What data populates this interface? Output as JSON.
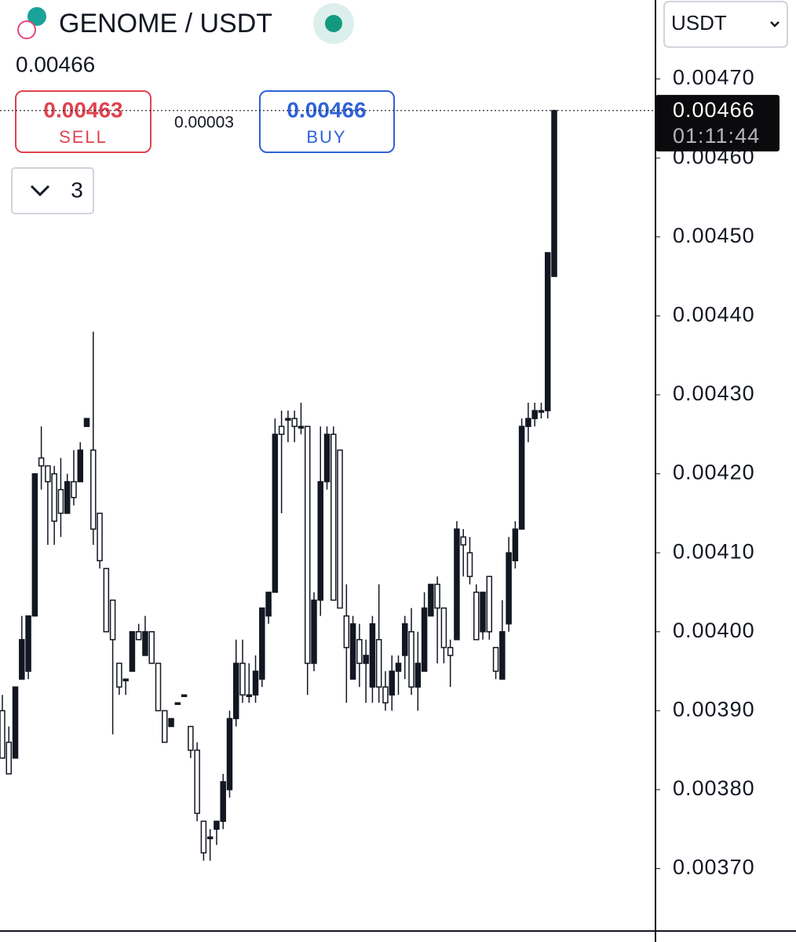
{
  "header": {
    "title": "GENOME / USDT",
    "price": "0.00466",
    "sell_price": "0.00463",
    "sell_label": "SELL",
    "spread": "0.00003",
    "buy_price": "0.00466",
    "buy_label": "BUY",
    "collapse_count": "3",
    "currency": "USDT"
  },
  "chart_data": {
    "type": "candlestick",
    "up_color": "#131722",
    "down_color": "#ffffff",
    "last_price": 0.00466,
    "countdown": "01:11:44",
    "ylim": [
      0.003622,
      0.0048
    ],
    "yticks": [
      {
        "value": 0.0037,
        "label": "0.00370"
      },
      {
        "value": 0.0038,
        "label": "0.00380"
      },
      {
        "value": 0.0039,
        "label": "0.00390"
      },
      {
        "value": 0.004,
        "label": "0.00400"
      },
      {
        "value": 0.0041,
        "label": "0.00410"
      },
      {
        "value": 0.0042,
        "label": "0.00420"
      },
      {
        "value": 0.0043,
        "label": "0.00430"
      },
      {
        "value": 0.0044,
        "label": "0.00440"
      },
      {
        "value": 0.0045,
        "label": "0.00450"
      },
      {
        "value": 0.0046,
        "label": "0.00460"
      },
      {
        "value": 0.0047,
        "label": "0.00470"
      }
    ],
    "open": [
      0.0039,
      0.00386,
      0.00384,
      0.00394,
      0.00395,
      0.00402,
      0.00422,
      0.00421,
      0.0042,
      0.00418,
      0.00415,
      0.00419,
      0.00419,
      0.00426,
      0.00423,
      0.00415,
      0.00408,
      0.00404,
      0.00396,
      0.00394,
      0.00395,
      0.004,
      0.00397,
      0.004,
      0.00396,
      0.0039,
      0.00388,
      0.00391,
      0.00392,
      0.00388,
      0.00385,
      0.00376,
      0.00374,
      0.00375,
      0.00376,
      0.0038,
      0.00389,
      0.00396,
      0.00392,
      0.00392,
      0.00394,
      0.00402,
      0.00405,
      0.00426,
      0.00427,
      0.00427,
      0.00426,
      0.00426,
      0.00396,
      0.00404,
      0.00419,
      0.00425,
      0.00423,
      0.00402,
      0.00394,
      0.00399,
      0.00396,
      0.00393,
      0.00399,
      0.00393,
      0.00392,
      0.00395,
      0.00397,
      0.004,
      0.00393,
      0.00395,
      0.00402,
      0.00406,
      0.00403,
      0.00398,
      0.00399,
      0.00412,
      0.0041,
      0.00405,
      0.004,
      0.00407,
      0.00398,
      0.00394,
      0.00401,
      0.00409,
      0.00413,
      0.00426,
      0.00427,
      0.00428,
      0.00428,
      0.00445
    ],
    "high": [
      0.00392,
      0.00388,
      0.00393,
      0.00402,
      0.00402,
      0.0042,
      0.00426,
      0.00421,
      0.00421,
      0.00422,
      0.0042,
      0.00423,
      0.00424,
      0.00427,
      0.00438,
      0.00415,
      0.00408,
      0.00404,
      0.00396,
      0.00394,
      0.004,
      0.00401,
      0.00402,
      0.004,
      0.00396,
      0.0039,
      0.00389,
      0.00391,
      0.00392,
      0.00388,
      0.00386,
      0.00376,
      0.00375,
      0.00376,
      0.00382,
      0.0039,
      0.00399,
      0.00399,
      0.00396,
      0.00397,
      0.00403,
      0.00405,
      0.00427,
      0.00428,
      0.00428,
      0.00428,
      0.00429,
      0.00426,
      0.00405,
      0.00426,
      0.00426,
      0.00426,
      0.00423,
      0.00406,
      0.00402,
      0.00401,
      0.00399,
      0.00402,
      0.00406,
      0.00395,
      0.00397,
      0.00397,
      0.00402,
      0.00403,
      0.004,
      0.00405,
      0.00406,
      0.00407,
      0.00403,
      0.00399,
      0.00414,
      0.00413,
      0.00412,
      0.00406,
      0.00405,
      0.00407,
      0.00398,
      0.00404,
      0.00412,
      0.00414,
      0.00427,
      0.00429,
      0.00429,
      0.00429,
      0.00448,
      0.00466
    ],
    "low": [
      0.00384,
      0.00382,
      0.00384,
      0.00394,
      0.00394,
      0.00402,
      0.00418,
      0.00411,
      0.00411,
      0.00412,
      0.00415,
      0.00416,
      0.00419,
      0.00426,
      0.00411,
      0.00408,
      0.004,
      0.00387,
      0.00392,
      0.00392,
      0.00395,
      0.00399,
      0.00397,
      0.00396,
      0.0039,
      0.00386,
      0.00388,
      0.00391,
      0.00392,
      0.00384,
      0.00376,
      0.00371,
      0.00371,
      0.00373,
      0.00375,
      0.00379,
      0.00388,
      0.00391,
      0.00391,
      0.00391,
      0.00393,
      0.00401,
      0.00405,
      0.00415,
      0.00424,
      0.00424,
      0.00425,
      0.00392,
      0.00395,
      0.00402,
      0.00418,
      0.00404,
      0.00403,
      0.00391,
      0.00394,
      0.00393,
      0.00391,
      0.00391,
      0.00391,
      0.0039,
      0.0039,
      0.00392,
      0.00394,
      0.00392,
      0.0039,
      0.00395,
      0.00402,
      0.00396,
      0.00396,
      0.00393,
      0.00399,
      0.00407,
      0.00406,
      0.00399,
      0.00399,
      0.00399,
      0.00394,
      0.00394,
      0.004,
      0.00408,
      0.00413,
      0.00424,
      0.00426,
      0.00427,
      0.00427,
      0.00445
    ],
    "close": [
      0.00384,
      0.00382,
      0.00393,
      0.00399,
      0.00402,
      0.0042,
      0.00421,
      0.00419,
      0.00414,
      0.00415,
      0.00419,
      0.00417,
      0.00423,
      0.00427,
      0.00413,
      0.00409,
      0.004,
      0.00399,
      0.00393,
      0.00394,
      0.004,
      0.00399,
      0.004,
      0.00396,
      0.0039,
      0.00386,
      0.00389,
      0.00391,
      0.00392,
      0.00385,
      0.00377,
      0.00372,
      0.00374,
      0.00376,
      0.00381,
      0.00389,
      0.00396,
      0.00392,
      0.00392,
      0.00395,
      0.00403,
      0.00405,
      0.00425,
      0.00425,
      0.00427,
      0.00426,
      0.00426,
      0.00396,
      0.00404,
      0.00419,
      0.00425,
      0.00404,
      0.00403,
      0.00398,
      0.00401,
      0.00396,
      0.00397,
      0.00401,
      0.00393,
      0.00391,
      0.00395,
      0.00396,
      0.00401,
      0.00393,
      0.00396,
      0.00403,
      0.00406,
      0.00403,
      0.00398,
      0.00397,
      0.00413,
      0.00411,
      0.00407,
      0.00399,
      0.00405,
      0.004,
      0.00395,
      0.004,
      0.0041,
      0.00413,
      0.00426,
      0.00427,
      0.00428,
      0.00428,
      0.00448,
      0.00466
    ]
  }
}
